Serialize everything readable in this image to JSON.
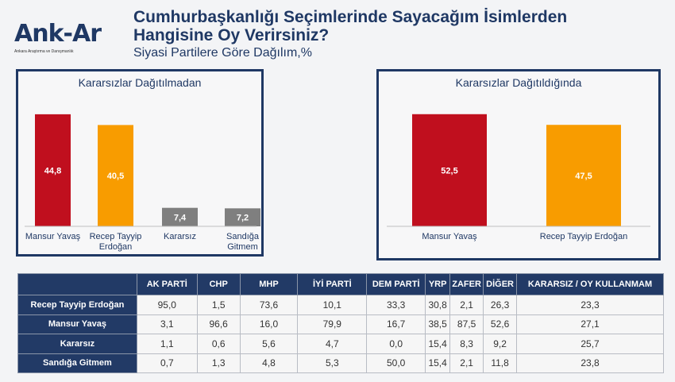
{
  "logo": {
    "name": "Ank-Ar",
    "tagline": "Ankara Araştırma ve Danışmanlık"
  },
  "title": "Cumhurbaşkanlığı Seçimlerinde Sayacağım İsimlerden Hangisine Oy Verirsiniz?",
  "subtitle": "Siyasi Partilere Göre Dağılım,%",
  "colors": {
    "navy": "#1f3864",
    "red": "#c00f1e",
    "orange": "#f89c00",
    "gray": "#7f7f7f"
  },
  "chart_data": [
    {
      "type": "bar",
      "title": "Kararsızlar Dağıtılmadan",
      "categories": [
        "Mansur Yavaş",
        "Recep Tayyip Erdoğan",
        "Kararsız",
        "Sandığa Gitmem"
      ],
      "values": [
        44.8,
        40.5,
        7.4,
        7.2
      ],
      "labels": [
        "44,8",
        "40,5",
        "7,4",
        "7,2"
      ],
      "colors": [
        "#c00f1e",
        "#f89c00",
        "#7f7f7f",
        "#7f7f7f"
      ],
      "grid": false
    },
    {
      "type": "bar",
      "title": "Kararsızlar Dağıtıldığında",
      "categories": [
        "Mansur Yavaş",
        "Recep Tayyip Erdoğan"
      ],
      "values": [
        52.5,
        47.5
      ],
      "labels": [
        "52,5",
        "47,5"
      ],
      "colors": [
        "#c00f1e",
        "#f89c00"
      ],
      "grid": false
    }
  ],
  "table": {
    "headers": [
      "",
      "AK PARTİ",
      "CHP",
      "MHP",
      "İYİ PARTİ",
      "DEM PARTİ",
      "YRP",
      "ZAFER",
      "DİĞER",
      "KARARSIZ / OY KULLANMAM"
    ],
    "rows": [
      [
        "Recep Tayyip Erdoğan",
        "95,0",
        "1,5",
        "73,6",
        "10,1",
        "33,3",
        "30,8",
        "2,1",
        "26,3",
        "23,3"
      ],
      [
        "Mansur Yavaş",
        "3,1",
        "96,6",
        "16,0",
        "79,9",
        "16,7",
        "38,5",
        "87,5",
        "52,6",
        "27,1"
      ],
      [
        "Kararsız",
        "1,1",
        "0,6",
        "5,6",
        "4,7",
        "0,0",
        "15,4",
        "8,3",
        "9,2",
        "25,7"
      ],
      [
        "Sandığa Gitmem",
        "0,7",
        "1,3",
        "4,8",
        "5,3",
        "50,0",
        "15,4",
        "2,1",
        "11,8",
        "23,8"
      ]
    ]
  }
}
